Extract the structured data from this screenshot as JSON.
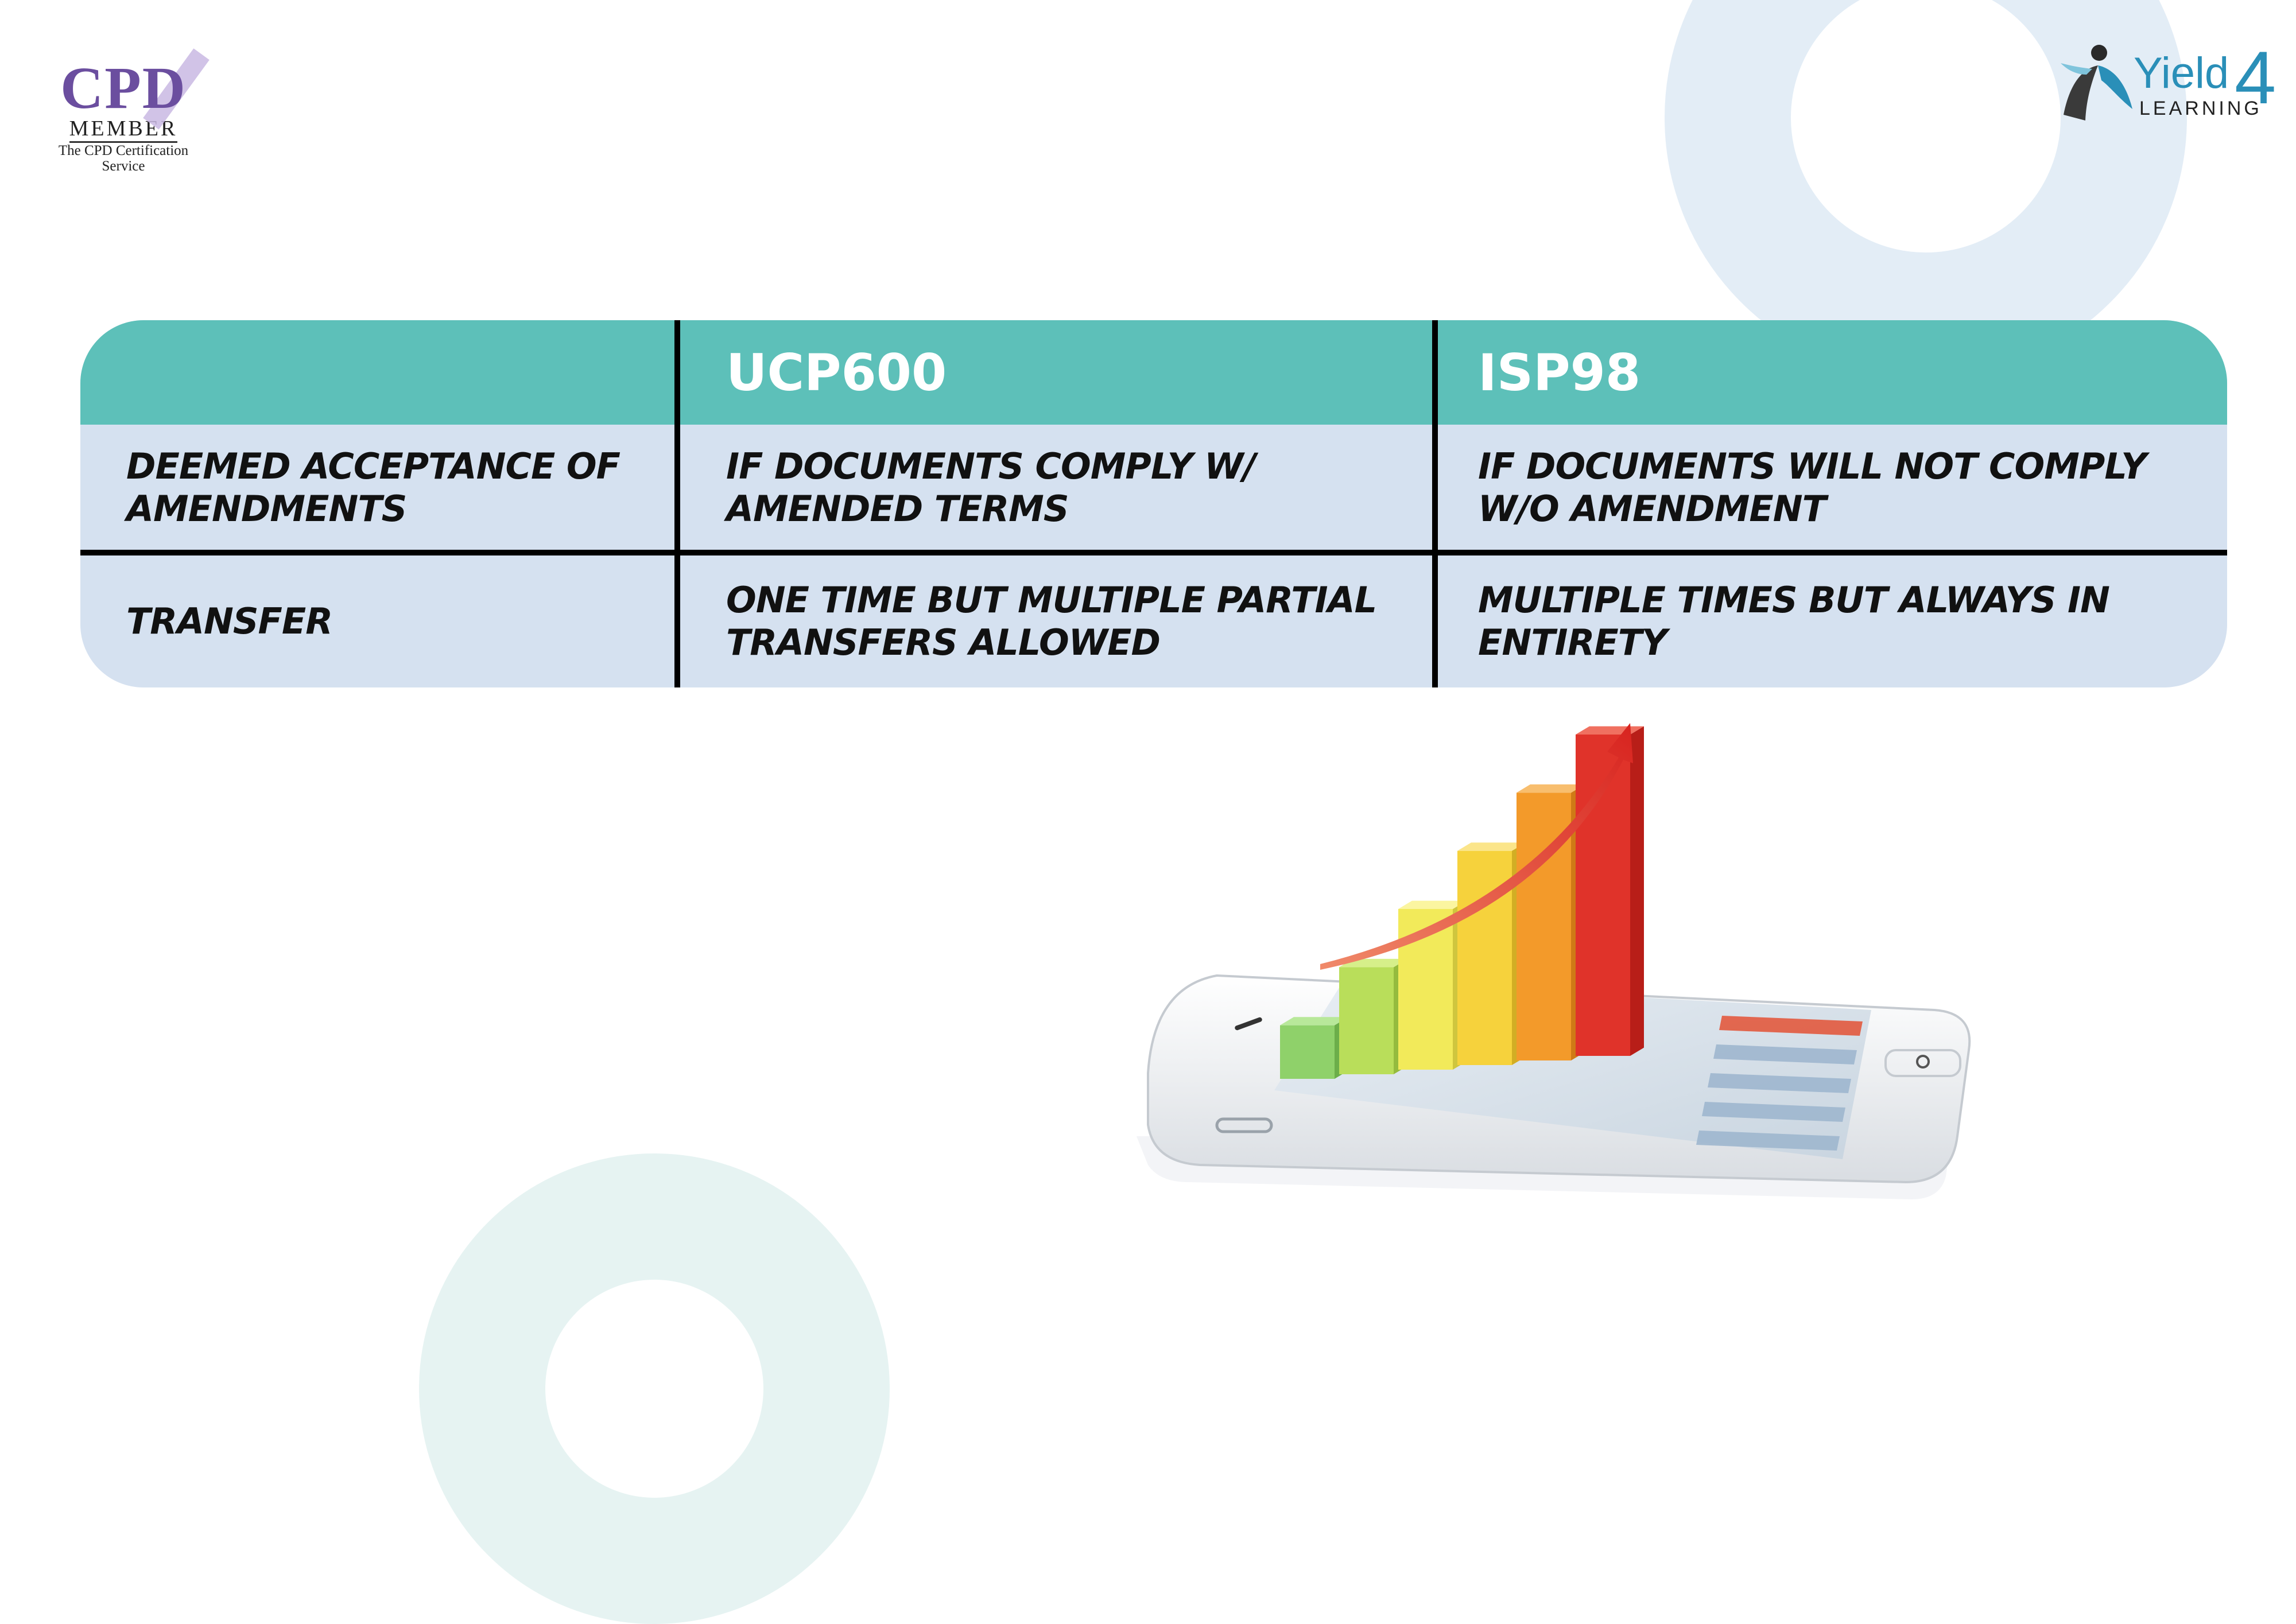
{
  "logos": {
    "cpd": {
      "letters": "CPD",
      "member": "MEMBER",
      "service_line1": "The CPD Certification",
      "service_line2": "Service"
    },
    "yield4": {
      "word": "Yield",
      "digit": "4",
      "sub": "LEARNING"
    }
  },
  "table": {
    "headers": [
      "",
      "UCP600",
      "ISP98"
    ],
    "rows": [
      [
        "DEEMED ACCEPTANCE OF AMENDMENTS",
        "IF DOCUMENTS COMPLY W/ AMENDED TERMS",
        "IF DOCUMENTS WILL NOT COMPLY W/O AMENDMENT"
      ],
      [
        "TRANSFER",
        "ONE TIME BUT MULTIPLE PARTIAL TRANSFERS ALLOWED",
        "MULTIPLE TIMES BUT ALWAYS IN ENTIRETY"
      ]
    ]
  },
  "colors": {
    "header_bg": "#5dc0b9",
    "body_bg": "#d5e1f0",
    "divider": "#000000",
    "header_text": "#ffffff"
  },
  "illustration": {
    "icon": "phone-growth-chart-icon",
    "bar_levels": [
      0.15,
      0.3,
      0.45,
      0.6,
      0.75,
      0.9
    ]
  }
}
